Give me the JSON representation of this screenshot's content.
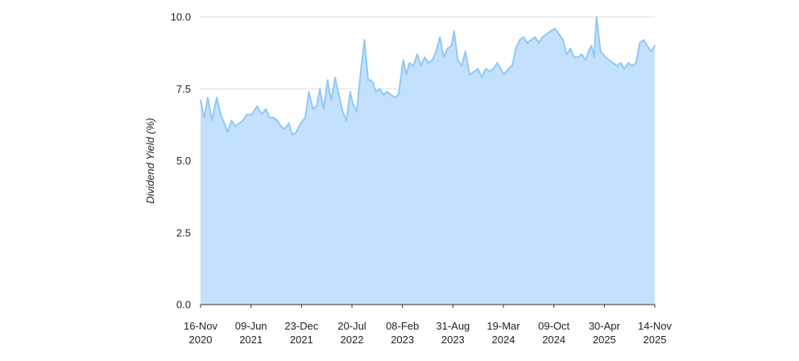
{
  "chart_data": {
    "type": "area",
    "xlabel": "",
    "ylabel": "Dividend Yield (%)",
    "ylim": [
      0,
      10
    ],
    "y_ticks": [
      "0.0",
      "2.5",
      "5.0",
      "7.5",
      "10.0"
    ],
    "x_ticks": [
      {
        "line1": "16-Nov",
        "line2": "2020"
      },
      {
        "line1": "09-Jun",
        "line2": "2021"
      },
      {
        "line1": "23-Dec",
        "line2": "2021"
      },
      {
        "line1": "20-Jul",
        "line2": "2022"
      },
      {
        "line1": "08-Feb",
        "line2": "2023"
      },
      {
        "line1": "31-Aug",
        "line2": "2023"
      },
      {
        "line1": "19-Mar",
        "line2": "2024"
      },
      {
        "line1": "09-Oct",
        "line2": "2024"
      },
      {
        "line1": "30-Apr",
        "line2": "2025"
      },
      {
        "line1": "14-Nov",
        "line2": "2025"
      }
    ],
    "grid": "horizontal",
    "colors": {
      "fill": "#c3e0fc",
      "line": "#90c8f8",
      "grid": "#dddddd",
      "axis": "#333333"
    },
    "series": [
      {
        "x": [
          "2020-11-16",
          "2020-12-01",
          "2020-12-15",
          "2021-01-01",
          "2021-01-20",
          "2021-02-05",
          "2021-02-20",
          "2021-03-05",
          "2021-03-20",
          "2021-04-05",
          "2021-04-20",
          "2021-05-05",
          "2021-05-20",
          "2021-06-09",
          "2021-07-01",
          "2021-07-20",
          "2021-08-05",
          "2021-08-20",
          "2021-09-05",
          "2021-09-20",
          "2021-10-05",
          "2021-10-20",
          "2021-11-05",
          "2021-11-20",
          "2021-12-05",
          "2021-12-23",
          "2022-01-10",
          "2022-01-25",
          "2022-02-10",
          "2022-02-25",
          "2022-03-10",
          "2022-03-25",
          "2022-04-10",
          "2022-04-25",
          "2022-05-10",
          "2022-05-25",
          "2022-06-10",
          "2022-06-25",
          "2022-07-10",
          "2022-07-20",
          "2022-08-05",
          "2022-08-20",
          "2022-09-05",
          "2022-09-20",
          "2022-10-01",
          "2022-10-10",
          "2022-10-20",
          "2022-11-05",
          "2022-11-20",
          "2022-12-05",
          "2022-12-20",
          "2023-01-05",
          "2023-01-20",
          "2023-02-08",
          "2023-02-20",
          "2023-03-05",
          "2023-03-20",
          "2023-04-05",
          "2023-04-20",
          "2023-05-05",
          "2023-05-20",
          "2023-06-05",
          "2023-06-20",
          "2023-07-05",
          "2023-07-20",
          "2023-08-05",
          "2023-08-20",
          "2023-08-31",
          "2023-09-15",
          "2023-10-01",
          "2023-10-15",
          "2023-11-01",
          "2023-11-20",
          "2023-12-05",
          "2023-12-20",
          "2024-01-05",
          "2024-01-20",
          "2024-02-05",
          "2024-02-20",
          "2024-03-05",
          "2024-03-19",
          "2024-04-05",
          "2024-04-20",
          "2024-05-05",
          "2024-05-20",
          "2024-06-05",
          "2024-06-20",
          "2024-07-05",
          "2024-07-20",
          "2024-08-05",
          "2024-08-20",
          "2024-09-05",
          "2024-09-20",
          "2024-10-09",
          "2024-10-25",
          "2024-11-10",
          "2024-11-25",
          "2024-12-10",
          "2024-12-25",
          "2025-01-10",
          "2025-01-25",
          "2025-02-10",
          "2025-02-25",
          "2025-03-05",
          "2025-03-15",
          "2025-03-25",
          "2025-04-10",
          "2025-04-30",
          "2025-05-15",
          "2025-05-30",
          "2025-06-15",
          "2025-06-30",
          "2025-07-15",
          "2025-07-30",
          "2025-08-15",
          "2025-08-30",
          "2025-09-15",
          "2025-09-30",
          "2025-10-15",
          "2025-10-30",
          "2025-11-14"
        ],
        "values": [
          7.1,
          6.5,
          7.2,
          6.4,
          7.2,
          6.6,
          6.3,
          6.0,
          6.4,
          6.2,
          6.3,
          6.4,
          6.6,
          6.6,
          6.9,
          6.6,
          6.8,
          6.5,
          6.5,
          6.4,
          6.2,
          6.1,
          6.3,
          5.9,
          6.0,
          6.3,
          6.5,
          7.4,
          6.8,
          6.9,
          7.5,
          6.8,
          7.8,
          7.1,
          7.9,
          7.3,
          6.7,
          6.4,
          7.4,
          7.0,
          6.7,
          8.0,
          9.2,
          7.8,
          7.8,
          7.7,
          7.4,
          7.5,
          7.3,
          7.4,
          7.3,
          7.2,
          7.3,
          8.5,
          8.0,
          8.4,
          8.3,
          8.7,
          8.3,
          8.6,
          8.4,
          8.5,
          8.8,
          9.3,
          8.6,
          8.9,
          9.0,
          9.5,
          8.5,
          8.3,
          8.8,
          8.0,
          8.1,
          8.2,
          7.9,
          8.2,
          8.1,
          8.2,
          8.4,
          8.2,
          8.0,
          8.2,
          8.3,
          8.9,
          9.2,
          9.3,
          9.1,
          9.2,
          9.3,
          9.1,
          9.3,
          9.4,
          9.5,
          9.6,
          9.4,
          9.2,
          8.7,
          8.9,
          8.6,
          8.6,
          8.7,
          8.5,
          8.9,
          9.0,
          8.6,
          10.0,
          8.8,
          8.6,
          8.5,
          8.4,
          8.3,
          8.4,
          8.2,
          8.4,
          8.3,
          8.4,
          9.1,
          9.2,
          9.0,
          8.8,
          9.0
        ]
      }
    ]
  }
}
